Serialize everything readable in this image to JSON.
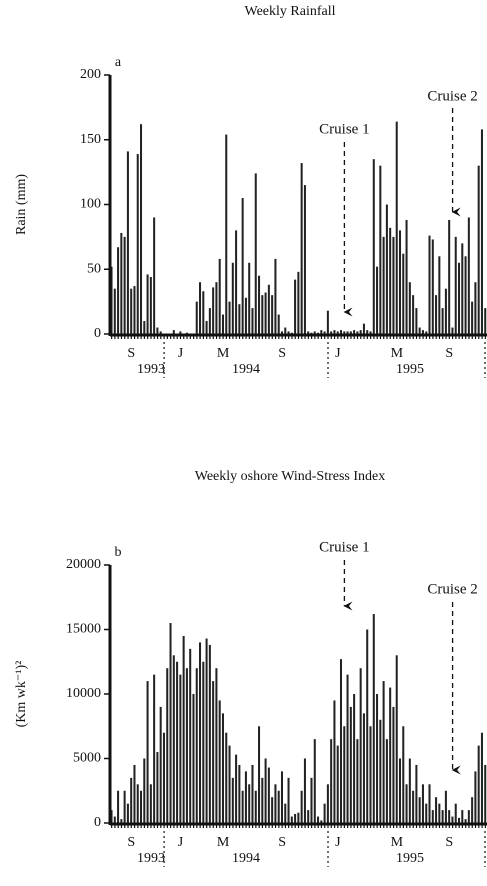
{
  "chart_data": [
    {
      "type": "bar",
      "title": "Weekly Rainfall",
      "panel": "a",
      "ylabel": "Rain (mm)",
      "color": "#222222",
      "ylim": [
        0,
        200
      ],
      "yticks": [
        0,
        50,
        100,
        150,
        200
      ],
      "categories": [
        null,
        null,
        null,
        null,
        null,
        null,
        "S",
        null,
        null,
        null,
        null,
        null,
        null,
        null,
        null,
        null,
        null,
        null,
        null,
        null,
        null,
        "J",
        null,
        null,
        null,
        null,
        null,
        null,
        null,
        null,
        null,
        null,
        null,
        null,
        "M",
        null,
        null,
        null,
        null,
        null,
        null,
        null,
        null,
        null,
        null,
        null,
        null,
        null,
        null,
        null,
        null,
        null,
        "S",
        null,
        null,
        null,
        null,
        null,
        null,
        null,
        null,
        null,
        null,
        null,
        null,
        null,
        null,
        null,
        null,
        "J",
        null,
        null,
        null,
        null,
        null,
        null,
        null,
        null,
        null,
        null,
        null,
        null,
        null,
        null,
        null,
        null,
        null,
        "M",
        null,
        null,
        null,
        null,
        null,
        null,
        null,
        null,
        null,
        null,
        null,
        null,
        null,
        null,
        null,
        "S",
        null,
        null,
        null,
        null,
        null,
        null,
        null,
        null,
        null,
        null,
        null
      ],
      "values": [
        52,
        35,
        67,
        78,
        75,
        141,
        35,
        37,
        139,
        162,
        10,
        46,
        44,
        90,
        5,
        2,
        0,
        0,
        0,
        3,
        0,
        2,
        0,
        1,
        0,
        0,
        25,
        40,
        33,
        10,
        20,
        36,
        40,
        58,
        15,
        154,
        25,
        55,
        80,
        23,
        105,
        28,
        55,
        20,
        124,
        45,
        30,
        32,
        38,
        30,
        58,
        15,
        2,
        5,
        2,
        1,
        42,
        48,
        132,
        115,
        2,
        1,
        2,
        1,
        3,
        2,
        18,
        2,
        3,
        2,
        3,
        2,
        2,
        2,
        3,
        2,
        3,
        8,
        3,
        2,
        135,
        52,
        130,
        75,
        100,
        82,
        75,
        164,
        80,
        62,
        88,
        40,
        30,
        20,
        5,
        3,
        2,
        76,
        73,
        30,
        60,
        20,
        35,
        88,
        5,
        75,
        55,
        70,
        60,
        90,
        25,
        40,
        130,
        158,
        20
      ],
      "x_group_labels": [
        "1993",
        "1994",
        "1995"
      ],
      "annotations": [
        {
          "text": "Cruise 1"
        },
        {
          "text": "Cruise 2"
        }
      ]
    },
    {
      "type": "bar",
      "title": "Weekly oshore Wind-Stress Index",
      "panel": "b",
      "ylabel": "(Km wk⁻¹)²",
      "color": "#222222",
      "ylim": [
        0,
        20000
      ],
      "yticks": [
        0,
        5000,
        10000,
        15000,
        20000
      ],
      "categories": [
        null,
        null,
        null,
        null,
        null,
        null,
        "S",
        null,
        null,
        null,
        null,
        null,
        null,
        null,
        null,
        null,
        null,
        null,
        null,
        null,
        null,
        "J",
        null,
        null,
        null,
        null,
        null,
        null,
        null,
        null,
        null,
        null,
        null,
        null,
        "M",
        null,
        null,
        null,
        null,
        null,
        null,
        null,
        null,
        null,
        null,
        null,
        null,
        null,
        null,
        null,
        null,
        null,
        "S",
        null,
        null,
        null,
        null,
        null,
        null,
        null,
        null,
        null,
        null,
        null,
        null,
        null,
        null,
        null,
        null,
        "J",
        null,
        null,
        null,
        null,
        null,
        null,
        null,
        null,
        null,
        null,
        null,
        null,
        null,
        null,
        null,
        null,
        null,
        "M",
        null,
        null,
        null,
        null,
        null,
        null,
        null,
        null,
        null,
        null,
        null,
        null,
        null,
        null,
        null,
        "S",
        null,
        null,
        null,
        null,
        null,
        null,
        null,
        null,
        null,
        null,
        null
      ],
      "values": [
        1000,
        500,
        2500,
        300,
        2500,
        1500,
        3500,
        4500,
        3000,
        2500,
        5000,
        11000,
        3000,
        11500,
        5500,
        9000,
        7000,
        12000,
        15500,
        13000,
        12500,
        11500,
        14500,
        12000,
        13500,
        10000,
        12000,
        14000,
        12500,
        14300,
        13800,
        11000,
        12000,
        9500,
        8500,
        7000,
        6000,
        3500,
        5300,
        4500,
        2500,
        4000,
        3000,
        4500,
        2500,
        7500,
        3500,
        5000,
        4300,
        2000,
        3000,
        2500,
        4000,
        1500,
        3500,
        500,
        700,
        800,
        2500,
        5000,
        1000,
        3500,
        6500,
        500,
        200,
        1500,
        3000,
        6500,
        9500,
        6000,
        12700,
        7500,
        11500,
        9000,
        10000,
        6500,
        12000,
        8500,
        15000,
        7500,
        16200,
        10000,
        8000,
        11000,
        6500,
        10500,
        9000,
        13000,
        5000,
        7500,
        3000,
        5000,
        2500,
        4500,
        2000,
        3000,
        1500,
        3000,
        1000,
        2000,
        1500,
        1000,
        2500,
        1000,
        500,
        1500,
        400,
        1000,
        300,
        1000,
        2000,
        4000,
        6000,
        7000,
        4500
      ],
      "x_group_labels": [
        "1993",
        "1994",
        "1995"
      ],
      "annotations": [
        {
          "text": "Cruise 1"
        },
        {
          "text": "Cruise 2"
        }
      ]
    }
  ]
}
